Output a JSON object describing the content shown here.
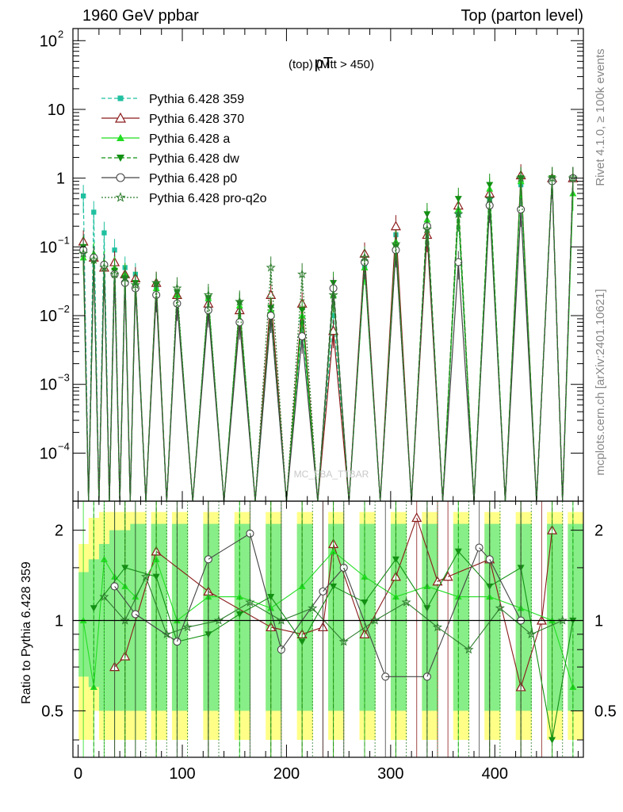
{
  "header": {
    "left_label": "1960 GeV ppbar",
    "right_label": "Top (parton level)"
  },
  "side_labels": {
    "rivet": "Rivet 4.1.0, ≥ 100k events",
    "mcplots": "mcplots.cern.ch [arXiv:2401.10621]"
  },
  "watermark": "MC_FBA_TTBAR",
  "colors": {
    "Pythia 6.428 359": "#20c0a0",
    "Pythia 6.428 370": "#8b1a1a",
    "Pythia 6.428 a": "#22dd22",
    "Pythia 6.428 dw": "#129012",
    "Pythia 6.428 p0": "#444444",
    "Pythia 6.428 pro-q2o": "#2e7d2e",
    "band_yellow": "#ffff88",
    "band_green": "#88ee88"
  },
  "chart_data": [
    {
      "type": "line",
      "title": "pT (top) (Mtt > 450)",
      "title_main": "pT",
      "title_sub": "(top) (Mtt > 450)",
      "xlabel": "",
      "ylabel": "",
      "yscale": "log",
      "xlim": [
        -5,
        485
      ],
      "ylim": [
        2e-05,
        150
      ],
      "x_ticks": [
        0,
        100,
        200,
        300,
        400
      ],
      "y_ticks": [
        {
          "value": 100,
          "base": "10",
          "exp": "2"
        },
        {
          "value": 10,
          "base": "10",
          "exp": ""
        },
        {
          "value": 1,
          "base": "1",
          "exp": ""
        },
        {
          "value": 0.1,
          "base": "10",
          "exp": "−1"
        },
        {
          "value": 0.01,
          "base": "10",
          "exp": "−2"
        },
        {
          "value": 0.001,
          "base": "10",
          "exp": "−3"
        },
        {
          "value": 0.0001,
          "base": "10",
          "exp": "−4"
        }
      ],
      "legend_position": "top-left",
      "series": [
        {
          "name": "Pythia 6.428 359",
          "marker": "square",
          "dash": "5,3",
          "x": [
            5,
            15,
            25,
            35,
            45,
            55,
            75,
            95,
            125,
            155,
            185,
            215,
            245,
            275,
            305,
            335,
            365,
            395,
            425,
            455,
            475
          ],
          "values": [
            0.55,
            0.32,
            0.16,
            0.09,
            0.05,
            0.04,
            0.025,
            0.02,
            0.015,
            0.012,
            0.01,
            0.008,
            0.01,
            0.05,
            0.15,
            0.2,
            0.3,
            0.5,
            0.8,
            1.0,
            1.0
          ]
        },
        {
          "name": "Pythia 6.428 370",
          "marker": "open-triangle-up",
          "dash": "",
          "x": [
            5,
            15,
            25,
            35,
            45,
            55,
            75,
            95,
            125,
            155,
            185,
            215,
            245,
            275,
            305,
            335,
            365,
            395,
            425,
            455,
            475
          ],
          "values": [
            0.12,
            0.07,
            0.05,
            0.06,
            0.04,
            0.035,
            0.03,
            0.02,
            0.015,
            0.012,
            0.02,
            0.015,
            0.006,
            0.08,
            0.2,
            0.15,
            0.4,
            0.6,
            1.1,
            1.0,
            1.0
          ]
        },
        {
          "name": "Pythia 6.428 a",
          "marker": "triangle-up",
          "dash": "",
          "x": [
            5,
            15,
            25,
            35,
            45,
            55,
            75,
            95,
            125,
            155,
            185,
            215,
            245,
            275,
            305,
            335,
            365,
            395,
            425,
            455,
            475
          ],
          "values": [
            0.07,
            0.08,
            0.06,
            0.05,
            0.04,
            0.03,
            0.025,
            0.02,
            0.018,
            0.014,
            0.012,
            0.01,
            0.02,
            0.05,
            0.12,
            0.25,
            0.35,
            0.7,
            0.9,
            1.0,
            0.6
          ]
        },
        {
          "name": "Pythia 6.428 dw",
          "marker": "triangle-down",
          "dash": "5,3",
          "x": [
            5,
            15,
            25,
            35,
            45,
            55,
            75,
            95,
            125,
            155,
            185,
            215,
            245,
            275,
            305,
            335,
            365,
            395,
            425,
            455,
            475
          ],
          "values": [
            0.1,
            0.06,
            0.05,
            0.045,
            0.035,
            0.03,
            0.028,
            0.022,
            0.018,
            0.015,
            0.013,
            0.012,
            0.03,
            0.06,
            0.1,
            0.3,
            0.5,
            0.8,
            1.0,
            1.0,
            1.0
          ]
        },
        {
          "name": "Pythia 6.428 p0",
          "marker": "open-circle",
          "dash": "",
          "x": [
            5,
            15,
            25,
            35,
            45,
            55,
            75,
            95,
            125,
            155,
            185,
            215,
            245,
            275,
            305,
            335,
            365,
            395,
            425,
            455,
            475
          ],
          "values": [
            0.09,
            0.07,
            0.055,
            0.04,
            0.03,
            0.025,
            0.02,
            0.015,
            0.012,
            0.008,
            0.01,
            0.005,
            0.025,
            0.06,
            0.09,
            0.2,
            0.06,
            0.4,
            0.35,
            0.9,
            1.0
          ]
        },
        {
          "name": "Pythia 6.428 pro-q2o",
          "marker": "open-star",
          "dash": "2,2",
          "x": [
            5,
            15,
            25,
            35,
            45,
            55,
            75,
            95,
            125,
            155,
            185,
            215,
            245,
            275,
            305,
            335,
            365,
            395,
            425,
            455,
            475
          ],
          "values": [
            0.08,
            0.065,
            0.05,
            0.04,
            0.035,
            0.028,
            0.03,
            0.025,
            0.02,
            0.016,
            0.05,
            0.04,
            0.02,
            0.07,
            0.11,
            0.18,
            0.3,
            0.5,
            1.0,
            1.0,
            1.0
          ]
        }
      ]
    },
    {
      "type": "line",
      "title": "",
      "xlabel": "",
      "ylabel": "Ratio to Pythia 6.428 359",
      "yscale": "log",
      "xlim": [
        -5,
        485
      ],
      "ylim": [
        0.35,
        2.5
      ],
      "x_ticks": [
        0,
        100,
        200,
        300,
        400
      ],
      "y_ticks": [
        0.5,
        1,
        2
      ],
      "reference_line": 1,
      "bands": {
        "x": [
          5,
          15,
          25,
          35,
          45,
          55,
          75,
          95,
          125,
          155,
          185,
          215,
          245,
          275,
          305,
          335,
          365,
          395,
          425,
          455,
          475
        ],
        "yellow_lo": [
          0.4,
          0.5,
          0.4,
          0.4,
          0.4,
          0.4,
          0.4,
          0.4,
          0.4,
          0.4,
          0.4,
          0.4,
          0.4,
          0.4,
          0.4,
          0.4,
          0.4,
          0.4,
          0.4,
          0.4,
          0.4
        ],
        "yellow_hi": [
          1.8,
          2.2,
          2.3,
          2.3,
          2.3,
          2.3,
          2.3,
          2.3,
          2.3,
          2.3,
          2.3,
          2.3,
          2.3,
          2.3,
          2.3,
          2.3,
          2.3,
          2.3,
          2.3,
          2.3,
          2.3
        ],
        "green_lo": [
          0.65,
          0.6,
          0.5,
          0.5,
          0.5,
          0.5,
          0.5,
          0.5,
          0.5,
          0.5,
          0.5,
          0.5,
          0.5,
          0.5,
          0.5,
          0.5,
          0.5,
          0.5,
          0.5,
          0.5,
          0.5
        ],
        "green_hi": [
          1.45,
          1.6,
          1.8,
          2.0,
          2.0,
          2.1,
          2.1,
          2.1,
          2.1,
          2.1,
          2.1,
          2.1,
          2.1,
          2.1,
          2.1,
          2.1,
          2.1,
          2.1,
          2.1,
          2.1,
          2.1
        ]
      },
      "series": [
        {
          "name": "Pythia 6.428 370",
          "x": [
            35,
            45,
            75,
            125,
            185,
            215,
            235,
            245,
            275,
            305,
            325,
            345,
            355,
            395,
            425,
            445,
            455
          ],
          "values": [
            0.7,
            0.76,
            1.7,
            1.25,
            0.95,
            0.9,
            0.95,
            1.8,
            0.9,
            1.4,
            2.2,
            1.35,
            1.4,
            1.6,
            0.6,
            1.0,
            2.0
          ]
        },
        {
          "name": "Pythia 6.428 a",
          "x": [
            5,
            15,
            25,
            35,
            45,
            55,
            75,
            95,
            125,
            155,
            185,
            215,
            245,
            275,
            305,
            335,
            365,
            395,
            425,
            455,
            475
          ],
          "values": [
            1.0,
            0.6,
            1.6,
            1.4,
            1.3,
            1.2,
            1.6,
            1.0,
            1.2,
            1.2,
            1.1,
            1.3,
            1.7,
            1.4,
            1.2,
            1.3,
            1.2,
            1.2,
            1.1,
            1.0,
            0.6
          ]
        },
        {
          "name": "Pythia 6.428 dw",
          "x": [
            15,
            45,
            75,
            95,
            125,
            155,
            185,
            215,
            245,
            275,
            305,
            335,
            365,
            395,
            425,
            455,
            475
          ],
          "values": [
            1.1,
            1.5,
            1.4,
            0.85,
            0.9,
            1.05,
            1.2,
            0.85,
            1.3,
            1.15,
            1.6,
            1.1,
            1.7,
            1.3,
            1.5,
            0.4,
            1.0
          ]
        },
        {
          "name": "Pythia 6.428 p0",
          "x": [
            35,
            55,
            95,
            125,
            165,
            195,
            235,
            255,
            295,
            335,
            385,
            395,
            425
          ],
          "values": [
            1.3,
            1.05,
            0.85,
            1.6,
            1.95,
            0.8,
            1.25,
            1.5,
            0.65,
            0.65,
            1.75,
            1.6,
            1.0
          ]
        },
        {
          "name": "Pythia 6.428 pro-q2o",
          "x": [
            25,
            45,
            65,
            85,
            105,
            135,
            165,
            195,
            225,
            255,
            285,
            315,
            345,
            375,
            405,
            435,
            465
          ],
          "values": [
            1.2,
            1.0,
            1.4,
            0.9,
            0.95,
            1.0,
            1.15,
            1.0,
            1.1,
            0.85,
            1.0,
            1.15,
            0.95,
            0.8,
            1.1,
            0.9,
            1.0
          ]
        }
      ]
    }
  ]
}
